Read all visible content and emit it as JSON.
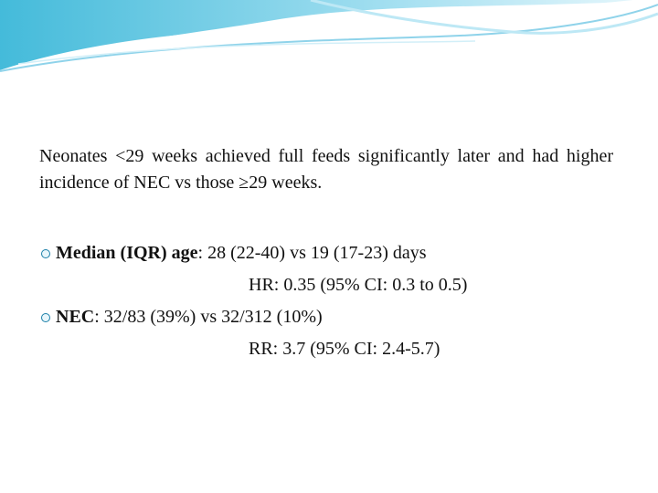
{
  "paragraph": "Neonates <29 weeks achieved full feeds significantly later and had higher incidence of NEC vs those ≥29 weeks.",
  "bullets": [
    {
      "label": "Median (IQR) age",
      "text": ": 28 (22-40) vs 19 (17-23) days",
      "detail": "HR: 0.35 (95% CI: 0.3 to 0.5)"
    },
    {
      "label": "NEC",
      "text": ": 32/83 (39%) vs 32/312 (10%)",
      "detail": "RR: 3.7 (95% CI: 2.4-5.7)"
    }
  ]
}
